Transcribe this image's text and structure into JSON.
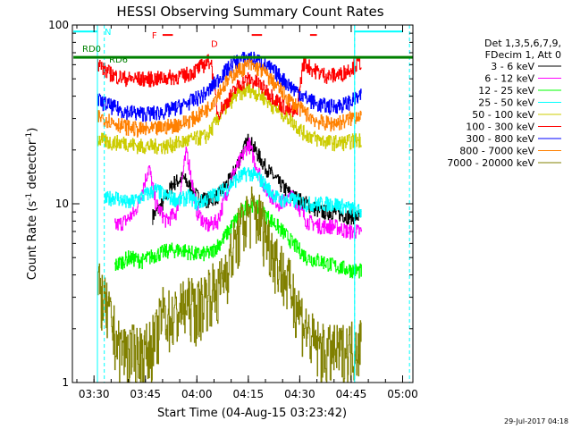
{
  "chart_data": {
    "type": "line",
    "title": "HESSI Observing Summary Count Rates",
    "xlabel": "Start Time (04-Aug-15 03:23:42)",
    "ylabel_main": "Count Rate (s",
    "ylabel_sup1": "-1",
    "ylabel_mid": " detector",
    "ylabel_sup2": "-1",
    "ylabel_end": ")",
    "y_scale": "log",
    "ylim": [
      1,
      100
    ],
    "y_ticks": [
      {
        "v": 1,
        "label": "1"
      },
      {
        "v": 10,
        "label": "10"
      },
      {
        "v": 100,
        "label": "100"
      }
    ],
    "xlim": [
      "03:23:42",
      "05:03:00"
    ],
    "x_ticks": [
      "03:30",
      "03:45",
      "04:00",
      "04:15",
      "04:30",
      "04:45",
      "05:00"
    ],
    "grid": false,
    "legend_position": "right",
    "legend_header": [
      "Det 1,3,5,6,7,9,",
      "FDecim 1, Att 0"
    ],
    "series": [
      {
        "name": "3 - 6 keV",
        "color": "#000000",
        "points": [
          [
            "03:47",
            8.5
          ],
          [
            "03:50",
            10
          ],
          [
            "03:53",
            13
          ],
          [
            "03:56",
            14
          ],
          [
            "04:00",
            11
          ],
          [
            "04:03",
            10.5
          ],
          [
            "04:06",
            11
          ],
          [
            "04:10",
            14
          ],
          [
            "04:13",
            19
          ],
          [
            "04:15",
            23
          ],
          [
            "04:17",
            20
          ],
          [
            "04:20",
            16
          ],
          [
            "04:24",
            13
          ],
          [
            "04:28",
            11
          ],
          [
            "04:32",
            10
          ],
          [
            "04:36",
            9
          ],
          [
            "04:40",
            9
          ],
          [
            "04:44",
            8.5
          ],
          [
            "04:48",
            8.5
          ]
        ]
      },
      {
        "name": "6 - 12 keV",
        "color": "#ff00ff",
        "points": [
          [
            "03:36",
            7.5
          ],
          [
            "03:39",
            8
          ],
          [
            "03:42",
            9
          ],
          [
            "03:44",
            12
          ],
          [
            "03:46",
            16
          ],
          [
            "03:48",
            10
          ],
          [
            "03:51",
            8
          ],
          [
            "03:54",
            9
          ],
          [
            "03:57",
            20
          ],
          [
            "04:00",
            9
          ],
          [
            "04:03",
            7.5
          ],
          [
            "04:06",
            8
          ],
          [
            "04:10",
            14
          ],
          [
            "04:13",
            18
          ],
          [
            "04:15",
            22
          ],
          [
            "04:17",
            17
          ],
          [
            "04:20",
            12
          ],
          [
            "04:24",
            10
          ],
          [
            "04:28",
            11
          ],
          [
            "04:32",
            8
          ],
          [
            "04:36",
            7.5
          ],
          [
            "04:40",
            7.5
          ],
          [
            "04:44",
            7
          ],
          [
            "04:48",
            7
          ]
        ]
      },
      {
        "name": "12 - 25 keV",
        "color": "#00ff00",
        "points": [
          [
            "03:36",
            4.5
          ],
          [
            "03:40",
            5.0
          ],
          [
            "03:44",
            4.8
          ],
          [
            "03:48",
            5.2
          ],
          [
            "03:52",
            5.5
          ],
          [
            "03:56",
            5.5
          ],
          [
            "04:00",
            5.2
          ],
          [
            "04:04",
            5.3
          ],
          [
            "04:08",
            6.5
          ],
          [
            "04:11",
            8
          ],
          [
            "04:14",
            9.5
          ],
          [
            "04:16",
            10
          ],
          [
            "04:19",
            9
          ],
          [
            "04:22",
            8
          ],
          [
            "04:25",
            7
          ],
          [
            "04:28",
            6
          ],
          [
            "04:32",
            5
          ],
          [
            "04:36",
            4.8
          ],
          [
            "04:40",
            4.5
          ],
          [
            "04:44",
            4.3
          ],
          [
            "04:48",
            4.2
          ]
        ]
      },
      {
        "name": "25 - 50 keV",
        "color": "#00ffff",
        "points": [
          [
            "03:33",
            10.5
          ],
          [
            "03:36",
            11
          ],
          [
            "03:40",
            10
          ],
          [
            "03:44",
            11
          ],
          [
            "03:48",
            12
          ],
          [
            "03:51",
            11
          ],
          [
            "03:55",
            10.5
          ],
          [
            "03:58",
            11
          ],
          [
            "04:00",
            10
          ],
          [
            "04:04",
            11
          ],
          [
            "04:08",
            12
          ],
          [
            "04:12",
            14
          ],
          [
            "04:15",
            15
          ],
          [
            "04:18",
            14
          ],
          [
            "04:21",
            12
          ],
          [
            "04:24",
            10.5
          ],
          [
            "04:28",
            10.5
          ],
          [
            "04:32",
            10
          ],
          [
            "04:36",
            10
          ],
          [
            "04:40",
            10
          ],
          [
            "04:44",
            9.5
          ],
          [
            "04:48",
            9
          ]
        ]
      },
      {
        "name": "50 - 100 keV",
        "color": "#cccc00",
        "points": [
          [
            "03:31",
            23
          ],
          [
            "03:35",
            22
          ],
          [
            "03:39",
            22
          ],
          [
            "03:43",
            21
          ],
          [
            "03:47",
            21
          ],
          [
            "03:51",
            21
          ],
          [
            "03:55",
            22
          ],
          [
            "03:59",
            23
          ],
          [
            "04:03",
            24
          ],
          [
            "04:07",
            32
          ],
          [
            "04:11",
            40
          ],
          [
            "04:15",
            44
          ],
          [
            "04:19",
            40
          ],
          [
            "04:23",
            34
          ],
          [
            "04:27",
            30
          ],
          [
            "04:31",
            25
          ],
          [
            "04:35",
            23
          ],
          [
            "04:39",
            22
          ],
          [
            "04:43",
            22
          ],
          [
            "04:48",
            23
          ]
        ]
      },
      {
        "name": "100 - 300 keV",
        "color": "#ff0000",
        "points": [
          [
            "03:31",
            62
          ],
          [
            "03:33",
            56
          ],
          [
            "03:36",
            52
          ],
          [
            "03:40",
            50
          ],
          [
            "03:44",
            50
          ],
          [
            "03:48",
            50
          ],
          [
            "03:52",
            51
          ],
          [
            "03:56",
            52
          ],
          [
            "03:59",
            55
          ],
          [
            "04:02",
            60
          ],
          [
            "04:04",
            64
          ],
          [
            "04:06",
            32
          ],
          [
            "04:09",
            38
          ],
          [
            "04:12",
            46
          ],
          [
            "04:15",
            50
          ],
          [
            "04:18",
            47
          ],
          [
            "04:22",
            40
          ],
          [
            "04:26",
            34
          ],
          [
            "04:29",
            32
          ],
          [
            "04:31",
            62
          ],
          [
            "04:34",
            56
          ],
          [
            "04:38",
            52
          ],
          [
            "04:42",
            53
          ],
          [
            "04:45",
            58
          ],
          [
            "04:48",
            62
          ]
        ]
      },
      {
        "name": "300 - 800 keV",
        "color": "#0000ff",
        "points": [
          [
            "03:31",
            38
          ],
          [
            "03:35",
            35
          ],
          [
            "03:39",
            33
          ],
          [
            "03:43",
            32
          ],
          [
            "03:47",
            32
          ],
          [
            "03:51",
            33
          ],
          [
            "03:55",
            35
          ],
          [
            "03:59",
            38
          ],
          [
            "04:03",
            42
          ],
          [
            "04:07",
            52
          ],
          [
            "04:11",
            62
          ],
          [
            "04:15",
            66
          ],
          [
            "04:19",
            62
          ],
          [
            "04:23",
            54
          ],
          [
            "04:27",
            46
          ],
          [
            "04:31",
            40
          ],
          [
            "04:35",
            36
          ],
          [
            "04:39",
            35
          ],
          [
            "04:43",
            36
          ],
          [
            "04:48",
            40
          ]
        ]
      },
      {
        "name": "800 - 7000 keV",
        "color": "#ff8000",
        "points": [
          [
            "03:31",
            31
          ],
          [
            "03:35",
            29
          ],
          [
            "03:39",
            27
          ],
          [
            "03:43",
            26
          ],
          [
            "03:47",
            26
          ],
          [
            "03:51",
            27
          ],
          [
            "03:55",
            28
          ],
          [
            "03:59",
            30
          ],
          [
            "04:03",
            34
          ],
          [
            "04:07",
            44
          ],
          [
            "04:11",
            54
          ],
          [
            "04:15",
            60
          ],
          [
            "04:19",
            56
          ],
          [
            "04:23",
            46
          ],
          [
            "04:27",
            38
          ],
          [
            "04:31",
            33
          ],
          [
            "04:35",
            29
          ],
          [
            "04:39",
            28
          ],
          [
            "04:43",
            29
          ],
          [
            "04:48",
            32
          ]
        ]
      },
      {
        "name": "7000 - 20000 keV",
        "color": "#808000",
        "points": [
          [
            "03:31",
            3.5
          ],
          [
            "03:33",
            2.8
          ],
          [
            "03:35",
            2.2
          ],
          [
            "03:37",
            1.6
          ],
          [
            "03:41",
            1.5
          ],
          [
            "03:45",
            1.5
          ],
          [
            "03:48",
            1.8
          ],
          [
            "03:50",
            2.5
          ],
          [
            "03:53",
            2.3
          ],
          [
            "03:55",
            2.6
          ],
          [
            "03:58",
            2.8
          ],
          [
            "04:00",
            2.6
          ],
          [
            "04:02",
            3.0
          ],
          [
            "04:04",
            3.4
          ],
          [
            "04:06",
            3.2
          ],
          [
            "04:08",
            4.2
          ],
          [
            "04:10",
            5.2
          ],
          [
            "04:12",
            6.8
          ],
          [
            "04:14",
            8.2
          ],
          [
            "04:16",
            9.2
          ],
          [
            "04:18",
            8.5
          ],
          [
            "04:20",
            7.0
          ],
          [
            "04:22",
            5.6
          ],
          [
            "04:24",
            4.6
          ],
          [
            "04:26",
            3.8
          ],
          [
            "04:28",
            3.2
          ],
          [
            "04:30",
            2.5
          ],
          [
            "04:32",
            2.0
          ],
          [
            "04:34",
            1.7
          ],
          [
            "04:37",
            1.5
          ],
          [
            "04:41",
            1.5
          ],
          [
            "04:45",
            1.6
          ],
          [
            "04:48",
            1.7
          ]
        ]
      }
    ],
    "annotations": {
      "N": {
        "start": "03:24",
        "end": "03:31",
        "y": 92,
        "color": "#00ffff",
        "label": "N"
      },
      "N2": {
        "start": "04:46",
        "end": "05:00",
        "y": 92,
        "color": "#00ffff"
      },
      "F": {
        "label": "F",
        "color": "#ff0000",
        "segments": [
          [
            "03:50",
            "03:53"
          ],
          [
            "04:16",
            "04:19"
          ],
          [
            "04:33",
            "04:35"
          ]
        ],
        "y": 88
      },
      "RD0": {
        "label": "RD0",
        "start": "03:24",
        "end": "05:03",
        "y": 66,
        "color": "#008000"
      },
      "RD6": {
        "label": "RD6",
        "y": 63,
        "color": "#008000"
      },
      "D": {
        "label": "D",
        "color": "#ff0000"
      },
      "dashed_lines": [
        "03:31",
        "04:46"
      ],
      "olive_dashed_lines": [
        "03:33",
        "04:46",
        "05:02"
      ]
    }
  },
  "footer": {
    "timestamp": "29-Jul-2017 04:18"
  }
}
